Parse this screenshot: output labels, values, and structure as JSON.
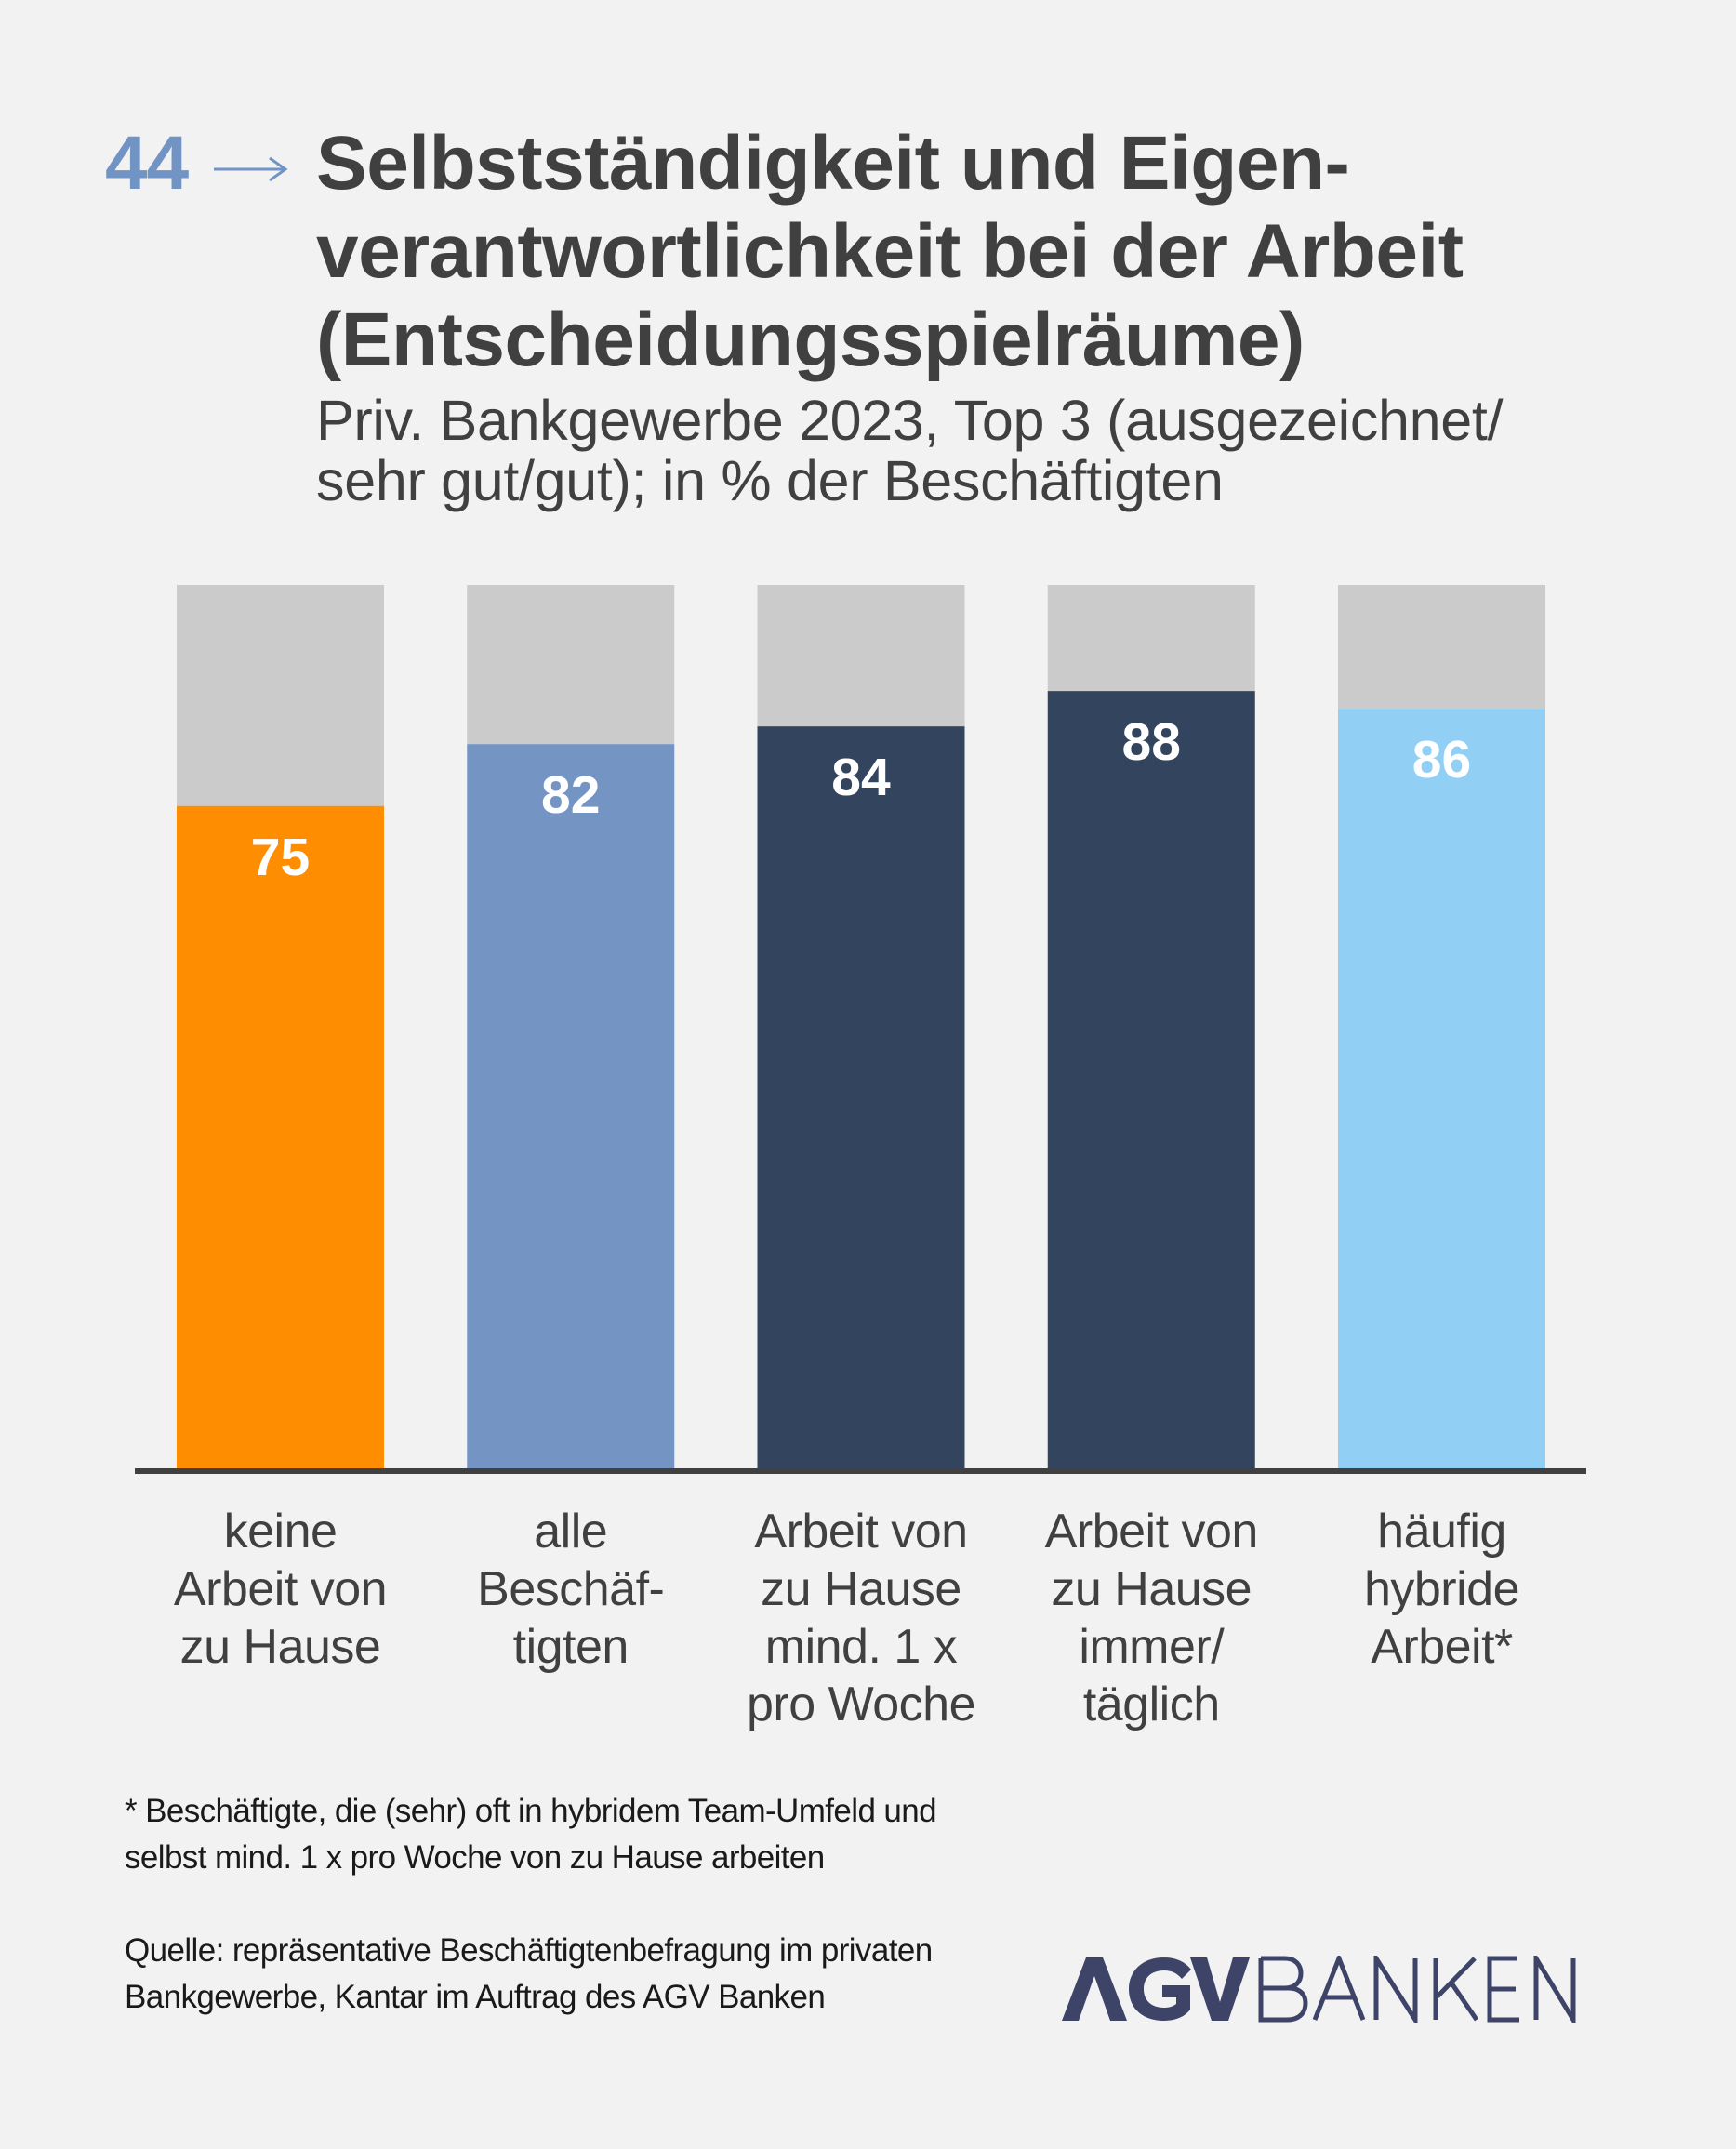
{
  "header": {
    "figure_number": "44",
    "title_lines": [
      "Selbstständigkeit und Eigen-",
      "verantwortlichkeit bei der Arbeit",
      "(Entscheidungsspielräume)"
    ],
    "subtitle_lines": [
      "Priv. Bankgewerbe 2023, Top 3 (ausgezeichnet/",
      "sehr gut/gut); in % der Beschäftigten"
    ]
  },
  "colors": {
    "background": "#f2f2f2",
    "remainder": "#cbcbcb",
    "axis": "#404040",
    "accent": "#7294c4",
    "logo": "#3d4468"
  },
  "chart_data": {
    "type": "bar",
    "title": "Selbstständigkeit und Eigenverantwortlichkeit bei der Arbeit (Entscheidungsspielräume)",
    "subtitle": "Priv. Bankgewerbe 2023, Top 3 (ausgezeichnet/sehr gut/gut); in % der Beschäftigten",
    "xlabel": "",
    "ylabel": "",
    "ylim": [
      0,
      100
    ],
    "grid": false,
    "stacked_remainder_to": 100,
    "categories": [
      "keine Arbeit von zu Hause",
      "alle Beschäftigten",
      "Arbeit von zu Hause mind. 1 x pro Woche",
      "Arbeit von zu Hause immer/täglich",
      "häufig hybride Arbeit*"
    ],
    "category_label_lines": [
      [
        "keine",
        "Arbeit von",
        "zu Hause"
      ],
      [
        "alle",
        "Beschäf-",
        "tigten"
      ],
      [
        "Arbeit von",
        "zu Hause",
        "mind. 1 x",
        "pro Woche"
      ],
      [
        "Arbeit von",
        "zu Hause",
        "immer/",
        "täglich"
      ],
      [
        "häufig",
        "hybride",
        "Arbeit*"
      ]
    ],
    "values": [
      75,
      82,
      84,
      88,
      86
    ],
    "bar_colors": [
      "#fe8d02",
      "#7494c4",
      "#33445f",
      "#33445f",
      "#92cff5"
    ],
    "data_labels": [
      "75",
      "82",
      "84",
      "88",
      "86"
    ]
  },
  "footnote_lines": [
    "* Beschäftigte, die (sehr) oft in hybridem Team-Umfeld und",
    "selbst mind. 1 x pro Woche von zu Hause arbeiten"
  ],
  "source_lines": [
    "Quelle: repräsentative Beschäftigtenbefragung im privaten",
    "Bankgewerbe, Kantar im Auftrag des AGV Banken"
  ],
  "logo": {
    "text_bold": "AGV",
    "text_light": "BANKEN"
  }
}
